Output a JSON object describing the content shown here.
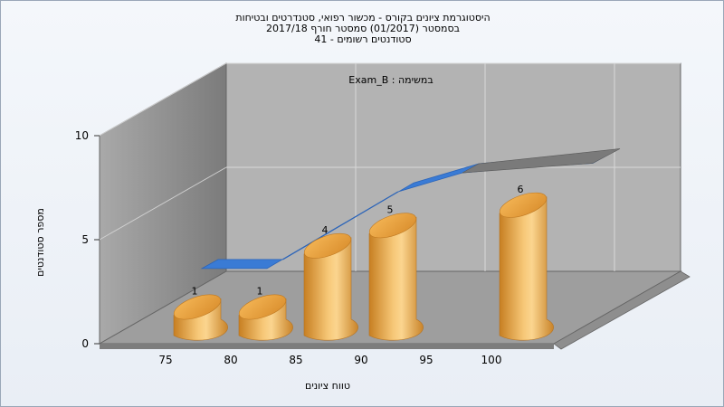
{
  "chart": {
    "title_lines": [
      "היסטוגרמת ציונים בקורס - מכשור רפואי, סטנדרטים ובטיחות",
      "בסמסטר  (01/2017)  סמסטר חורף 2017/18",
      "סטודנטים רשומים - 41"
    ]
  },
  "chart_data": {
    "type": "bar",
    "title": "היסטוגרמת ציונים בקורס - מכשור רפואי, סטנדרטים ובטיחות",
    "subtitle": "בסמסטר  (01/2017)  סמסטר חורף 2017/18 | סטודנטים רשומים - 41",
    "annotation": "Exam_B : במשימה",
    "xlabel": "טווח ציונים",
    "ylabel": "מספר סטודנטים",
    "x_ticks": [
      75,
      80,
      85,
      90,
      95,
      100
    ],
    "y_ticks": [
      0,
      5,
      10
    ],
    "ylim": [
      0,
      10
    ],
    "grid": true,
    "series": [
      {
        "type": "bar3d-cylinder",
        "color": "#e8a840",
        "x": [
          75,
          80,
          85,
          90,
          100
        ],
        "values": [
          1,
          1,
          4,
          5,
          6
        ],
        "labels": [
          "1",
          "1",
          "4",
          "5",
          "6"
        ]
      },
      {
        "type": "curve-ribbon",
        "color": "#3a7bd5",
        "x": [
          75,
          80,
          85,
          90,
          95,
          100,
          105
        ],
        "values": [
          1,
          1,
          3,
          5,
          6,
          6.3,
          6.5
        ]
      }
    ]
  }
}
